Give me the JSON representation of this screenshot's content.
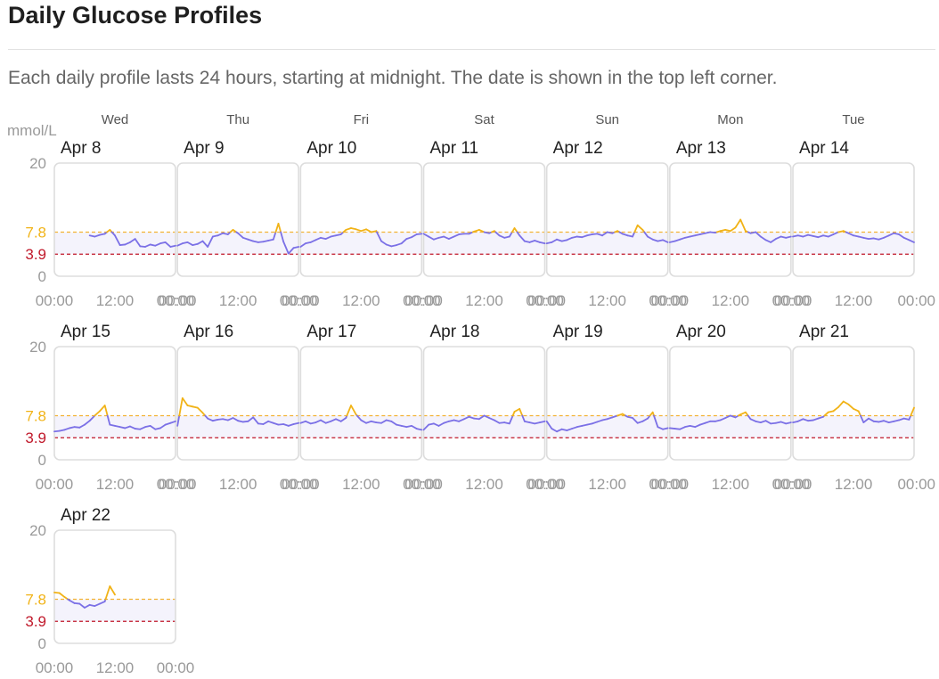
{
  "page": {
    "title": "Daily Glucose Profiles",
    "subtitle": "Each daily profile lasts 24 hours, starting at midnight. The date is shown in the top left corner."
  },
  "colors": {
    "in_range": "#7b70e6",
    "high": "#f1b317",
    "target": "#f2b233",
    "low": "#c0182a",
    "band": "#f4f3fc",
    "frame": "#dddddd"
  },
  "chart_data": {
    "type": "line",
    "unit": "mmol/L",
    "ylim": [
      0,
      20
    ],
    "y_ticks": [
      0,
      3.9,
      7.8,
      20
    ],
    "y_tick_labels": [
      "0",
      "3.9",
      "7.8",
      "20"
    ],
    "target_high": 7.8,
    "target_low": 3.9,
    "x_tick_labels": [
      "00:00",
      "12:00",
      "00:00"
    ],
    "weekdays": [
      "Wed",
      "Thu",
      "Fri",
      "Sat",
      "Sun",
      "Mon",
      "Tue"
    ],
    "days": [
      {
        "date": "Apr 8",
        "hours": [
          7,
          8,
          9,
          10,
          11,
          12,
          13,
          14,
          15,
          16,
          17,
          18,
          19,
          20,
          21,
          22,
          23,
          24
        ],
        "values": [
          7.2,
          7.0,
          7.3,
          7.5,
          8.2,
          7.2,
          5.5,
          5.6,
          6.0,
          6.6,
          5.3,
          5.2,
          5.6,
          5.4,
          5.8,
          6.0,
          5.2,
          5.4
        ]
      },
      {
        "date": "Apr 9",
        "hours": [
          0,
          1,
          2,
          3,
          4,
          5,
          6,
          7,
          8,
          9,
          10,
          11,
          12,
          13,
          14,
          15,
          16,
          17,
          18,
          19,
          20,
          21,
          22,
          23,
          24
        ],
        "values": [
          5.4,
          5.8,
          6.0,
          5.5,
          5.7,
          6.2,
          5.2,
          7.0,
          7.2,
          7.6,
          7.4,
          8.2,
          7.6,
          6.8,
          6.5,
          6.2,
          6.0,
          6.1,
          6.3,
          6.5,
          9.3,
          6.1,
          4.0,
          5.0,
          5.2
        ]
      },
      {
        "date": "Apr 10",
        "hours": [
          0,
          1,
          2,
          3,
          4,
          5,
          6,
          7,
          8,
          9,
          10,
          11,
          12,
          13,
          14,
          15,
          16,
          17,
          18,
          19,
          20,
          21,
          22,
          23,
          24
        ],
        "values": [
          5.2,
          5.8,
          6.0,
          6.4,
          6.8,
          6.6,
          7.0,
          7.2,
          7.4,
          8.2,
          8.5,
          8.3,
          8.0,
          8.3,
          7.8,
          8.0,
          6.2,
          5.6,
          5.3,
          5.5,
          5.8,
          6.6,
          6.9,
          7.4,
          7.5
        ]
      },
      {
        "date": "Apr 11",
        "hours": [
          0,
          1,
          2,
          3,
          4,
          5,
          6,
          7,
          8,
          9,
          10,
          11,
          12,
          13,
          14,
          15,
          16,
          17,
          18,
          19,
          20,
          21,
          22,
          23,
          24
        ],
        "values": [
          7.5,
          7.0,
          6.5,
          6.8,
          7.0,
          6.6,
          7.0,
          7.4,
          7.5,
          7.5,
          7.9,
          8.2,
          7.8,
          7.6,
          8.0,
          7.2,
          6.8,
          7.0,
          8.5,
          7.2,
          6.2,
          6.0,
          6.3,
          6.0,
          5.8
        ]
      },
      {
        "date": "Apr 12",
        "hours": [
          0,
          1,
          2,
          3,
          4,
          5,
          6,
          7,
          8,
          9,
          10,
          11,
          12,
          13,
          14,
          15,
          16,
          17,
          18,
          19,
          20,
          21,
          22,
          23,
          24
        ],
        "values": [
          5.8,
          6.0,
          6.5,
          6.2,
          6.4,
          6.8,
          7.0,
          6.9,
          7.2,
          7.4,
          7.5,
          7.2,
          7.8,
          7.6,
          8.0,
          7.5,
          7.2,
          7.0,
          9.0,
          8.2,
          7.0,
          6.5,
          6.2,
          6.4,
          6.0
        ]
      },
      {
        "date": "Apr 13",
        "hours": [
          0,
          1,
          2,
          3,
          4,
          5,
          6,
          7,
          8,
          9,
          10,
          11,
          12,
          13,
          14,
          15,
          16,
          17,
          18,
          19,
          20,
          21,
          22,
          23,
          24
        ],
        "values": [
          6.0,
          6.2,
          6.5,
          6.8,
          7.0,
          7.2,
          7.4,
          7.6,
          7.8,
          7.7,
          8.0,
          8.2,
          8.0,
          8.6,
          10.0,
          8.0,
          7.6,
          7.8,
          7.0,
          6.4,
          6.0,
          6.6,
          7.0,
          6.8,
          7.0
        ]
      },
      {
        "date": "Apr 14",
        "hours": [
          0,
          1,
          2,
          3,
          4,
          5,
          6,
          7,
          8,
          9,
          10,
          11,
          12,
          13,
          14,
          15,
          16,
          17,
          18,
          19,
          20,
          21,
          22,
          23,
          24
        ],
        "values": [
          7.0,
          7.2,
          7.0,
          7.3,
          7.1,
          6.9,
          7.2,
          7.0,
          7.4,
          7.8,
          8.0,
          7.6,
          7.2,
          7.0,
          6.8,
          6.6,
          6.7,
          6.5,
          6.8,
          7.2,
          7.6,
          7.4,
          6.8,
          6.4,
          6.0
        ]
      },
      {
        "date": "Apr 15",
        "hours": [
          0,
          1,
          2,
          3,
          4,
          5,
          6,
          7,
          8,
          9,
          10,
          11,
          12,
          13,
          14,
          15,
          16,
          17,
          18,
          19,
          20,
          21,
          22,
          23,
          24
        ],
        "values": [
          5.0,
          5.1,
          5.3,
          5.6,
          5.8,
          5.7,
          6.2,
          6.9,
          7.8,
          8.6,
          9.6,
          6.2,
          6.0,
          5.8,
          5.6,
          5.9,
          5.5,
          5.4,
          5.8,
          6.0,
          5.4,
          5.6,
          6.2,
          6.5,
          6.8
        ]
      },
      {
        "date": "Apr 16",
        "hours": [
          0,
          1,
          2,
          3,
          4,
          5,
          6,
          7,
          8,
          9,
          10,
          11,
          12,
          13,
          14,
          15,
          16,
          17,
          18,
          19,
          20,
          21,
          22,
          23,
          24
        ],
        "values": [
          6.0,
          10.9,
          9.6,
          9.4,
          9.2,
          8.3,
          7.3,
          6.9,
          7.1,
          7.2,
          7.0,
          7.4,
          6.9,
          6.7,
          6.8,
          7.5,
          6.4,
          6.3,
          6.8,
          6.5,
          6.2,
          6.3,
          6.0,
          6.3,
          6.5
        ]
      },
      {
        "date": "Apr 17",
        "hours": [
          0,
          1,
          2,
          3,
          4,
          5,
          6,
          7,
          8,
          9,
          10,
          11,
          12,
          13,
          14,
          15,
          16,
          17,
          18,
          19,
          20,
          21,
          22,
          23,
          24
        ],
        "values": [
          6.5,
          6.8,
          6.4,
          6.6,
          7.0,
          6.5,
          6.8,
          7.2,
          6.8,
          7.4,
          9.6,
          8.0,
          7.0,
          6.5,
          6.8,
          6.6,
          6.5,
          7.0,
          6.8,
          6.2,
          6.0,
          5.8,
          6.0,
          5.5,
          5.3
        ]
      },
      {
        "date": "Apr 18",
        "hours": [
          0,
          1,
          2,
          3,
          4,
          5,
          6,
          7,
          8,
          9,
          10,
          11,
          12,
          13,
          14,
          15,
          16,
          17,
          18,
          19,
          20,
          21,
          22,
          23,
          24
        ],
        "values": [
          5.3,
          6.2,
          6.4,
          6.0,
          6.5,
          6.8,
          7.0,
          6.8,
          7.2,
          7.6,
          7.3,
          7.2,
          7.8,
          7.4,
          7.0,
          6.5,
          6.6,
          6.4,
          8.5,
          9.0,
          6.8,
          6.6,
          6.4,
          6.6,
          6.8
        ]
      },
      {
        "date": "Apr 19",
        "hours": [
          0,
          1,
          2,
          3,
          4,
          5,
          6,
          7,
          8,
          9,
          10,
          11,
          12,
          13,
          14,
          15,
          16,
          17,
          18,
          19,
          20,
          21,
          22,
          23,
          24
        ],
        "values": [
          6.8,
          5.5,
          5.0,
          5.4,
          5.2,
          5.5,
          5.8,
          6.0,
          6.2,
          6.4,
          6.7,
          7.0,
          7.2,
          7.5,
          7.8,
          8.1,
          7.6,
          7.4,
          6.5,
          6.8,
          7.3,
          8.4,
          5.8,
          5.4,
          5.6
        ]
      },
      {
        "date": "Apr 20",
        "hours": [
          0,
          1,
          2,
          3,
          4,
          5,
          6,
          7,
          8,
          9,
          10,
          11,
          12,
          13,
          14,
          15,
          16,
          17,
          18,
          19,
          20,
          21,
          22,
          23,
          24
        ],
        "values": [
          5.6,
          5.5,
          5.4,
          5.8,
          6.0,
          5.8,
          6.2,
          6.5,
          6.8,
          6.8,
          7.0,
          7.4,
          7.8,
          7.5,
          8.0,
          8.4,
          7.2,
          6.8,
          6.6,
          6.9,
          6.4,
          6.5,
          6.7,
          6.4,
          6.6
        ]
      },
      {
        "date": "Apr 21",
        "hours": [
          0,
          1,
          2,
          3,
          4,
          5,
          6,
          7,
          8,
          9,
          10,
          11,
          12,
          13,
          14,
          15,
          16,
          17,
          18,
          19,
          20,
          21,
          22,
          23,
          24
        ],
        "values": [
          6.6,
          6.8,
          7.2,
          6.9,
          7.0,
          7.3,
          7.6,
          8.4,
          8.6,
          9.3,
          10.3,
          9.8,
          9.0,
          8.6,
          6.6,
          7.3,
          6.8,
          6.7,
          6.9,
          6.6,
          6.8,
          7.0,
          7.3,
          7.1,
          9.2
        ]
      },
      {
        "date": "Apr 22",
        "hours": [
          0,
          1,
          2,
          3,
          4,
          5,
          6,
          7,
          8,
          9,
          10,
          11,
          12
        ],
        "values": [
          9.0,
          8.9,
          8.2,
          7.6,
          7.1,
          7.0,
          6.3,
          6.8,
          6.6,
          7.0,
          7.4,
          10.1,
          8.6
        ]
      }
    ]
  }
}
